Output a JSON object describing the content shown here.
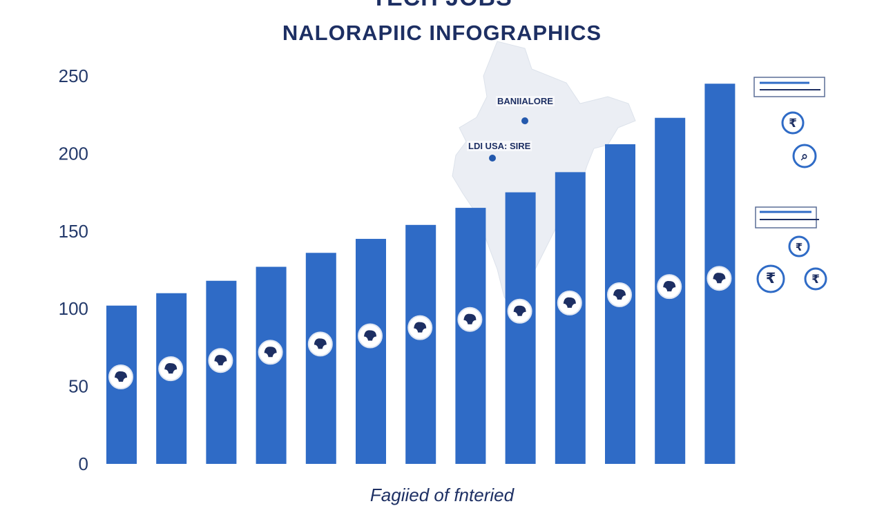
{
  "title": "TECH JOBS",
  "subtitle": "NALORAPIIC INFOGRAPHICS",
  "map_labels": [
    "BANIIALORE",
    "LDI USA: SIRE"
  ],
  "chart_data": {
    "type": "bar",
    "title": "TECH JOBS",
    "subtitle": "NALORAPIIC INFOGRAPHICS",
    "xlabel": "Fagiied of fnteried",
    "ylabel": "",
    "ylim": [
      0,
      250
    ],
    "yticks": [
      0,
      50,
      100,
      150,
      200,
      250
    ],
    "grid": false,
    "legend": "right",
    "values": [
      102,
      110,
      118,
      127,
      136,
      145,
      154,
      165,
      175,
      188,
      206,
      223,
      245
    ]
  },
  "colors": {
    "bar": "#2f6bc6",
    "bar_dark": "#2459ad",
    "title": "#1d2f63",
    "axis_text": "#243a6b",
    "map": "#e9edf3",
    "marker_ring": "#ffffff",
    "marker_icon": "#1d2f63"
  },
  "legend_icons": [
    "rupee-icon",
    "search-icon",
    "rupee-icon",
    "rupee-icon",
    "rupee-icon"
  ]
}
